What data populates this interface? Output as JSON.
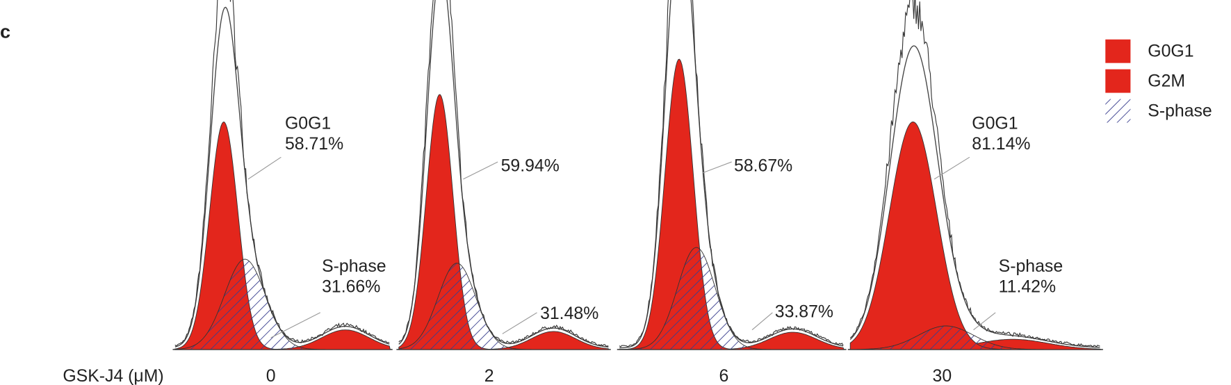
{
  "panel_label": "c",
  "legend": [
    {
      "label": "G0G1"
    },
    {
      "label": "G2M"
    },
    {
      "label": "S-phase"
    }
  ],
  "x_axis_label": "GSK-J4 (μM)",
  "panels": [
    {
      "dose": "0",
      "annotations": [
        {
          "lines": [
            "G0G1",
            "58.71%"
          ]
        },
        {
          "lines": [
            "S-phase",
            "31.66%"
          ]
        }
      ]
    },
    {
      "dose": "2",
      "annotations": [
        {
          "lines": [
            "59.94%"
          ]
        },
        {
          "lines": [
            "31.48%"
          ]
        }
      ]
    },
    {
      "dose": "6",
      "annotations": [
        {
          "lines": [
            "58.67%"
          ]
        },
        {
          "lines": [
            "33.87%"
          ]
        }
      ]
    },
    {
      "dose": "30",
      "annotations": [
        {
          "lines": [
            "G0G1",
            "81.14%"
          ]
        },
        {
          "lines": [
            "S-phase",
            "11.42%"
          ]
        }
      ]
    }
  ]
}
